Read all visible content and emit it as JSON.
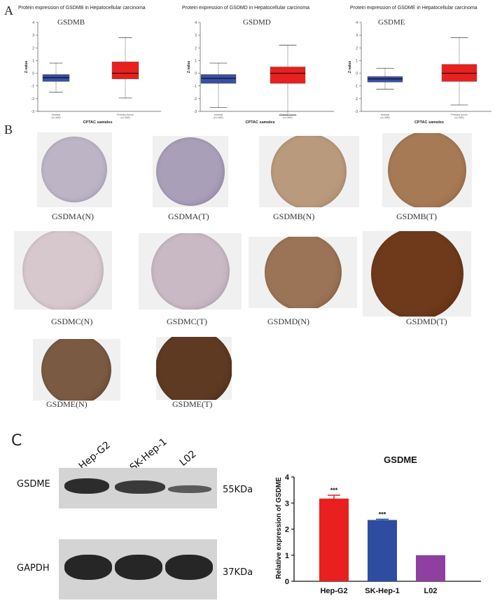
{
  "panels": {
    "a": "A",
    "b": "B",
    "c": "C"
  },
  "boxplots": [
    {
      "title": "Protein expression of GSDMB in Hepatocellular carcinoma",
      "gene": "GSDMB",
      "normal_label": "Normal",
      "normal_n": "(n=165)",
      "tumor_label": "Primary tumor",
      "tumor_n": "(n=165)",
      "normal_stats": [
        -1.5,
        -0.65,
        -0.35,
        -0.1,
        0.8
      ],
      "tumor_stats": [
        -1.95,
        -0.45,
        0.0,
        0.9,
        2.8
      ]
    },
    {
      "title": "Protein expression of GSDMD in Hepatocellular carcinoma",
      "gene": "GSDMD",
      "normal_label": "Normal",
      "normal_n": "(n=165)",
      "tumor_label": "Primary tumor",
      "tumor_n": "(n=165)",
      "normal_stats": [
        -2.7,
        -0.8,
        -0.4,
        -0.1,
        0.8
      ],
      "tumor_stats": [
        -3.3,
        -0.8,
        0.0,
        0.5,
        2.2
      ]
    },
    {
      "title": "Protein expression of GSDME in Hepatocellular carcinoma",
      "gene": "GSDME",
      "normal_label": "Normal",
      "normal_n": "(n=165)",
      "tumor_label": "Primary tumor",
      "tumor_n": "(n=165)",
      "normal_stats": [
        -1.25,
        -0.7,
        -0.45,
        -0.25,
        0.4
      ],
      "tumor_stats": [
        -2.5,
        -0.65,
        0.0,
        0.7,
        2.8
      ]
    }
  ],
  "boxplot_common": {
    "ylabel": "Z-value",
    "xlabel": "CPTAC samples",
    "yticks": [
      -3,
      -2,
      -1,
      0,
      1,
      2,
      3,
      4
    ],
    "normal_color": "#3a4fa3",
    "tumor_color": "#e8201f"
  },
  "ihc": [
    {
      "label": "GSDMA(N)",
      "color": "#bdb5c6",
      "rim": "#a69dba"
    },
    {
      "label": "GSDMA(T)",
      "color": "#a99fb8",
      "rim": "#8f85a3"
    },
    {
      "label": "GSDMB(N)",
      "color": "#b99a7d",
      "rim": "#a9896a"
    },
    {
      "label": "GSDMB(T)",
      "color": "#a77a56",
      "rim": "#94673f"
    },
    {
      "label": "GSDMC(N)",
      "color": "#d6c8cd",
      "rim": "#c2b1bd"
    },
    {
      "label": "GSDMC(T)",
      "color": "#c8b9c4",
      "rim": "#b2a2b4"
    },
    {
      "label": "GSDMD(N)",
      "color": "#9b7457",
      "rim": "#87603f"
    },
    {
      "label": "GSDMD(T)",
      "color": "#6f3a1c",
      "rim": "#5a2b10"
    },
    {
      "label": "GSDME(N)",
      "color": "#7a5a42",
      "rim": "#5f432f"
    },
    {
      "label": "GSDME(T)",
      "color": "#5e3a22",
      "rim": "#4a2a15"
    }
  ],
  "western": {
    "lanes": [
      "Hep-G2",
      "SK-Hep-1",
      "L02"
    ],
    "rows": [
      {
        "protein": "GSDME",
        "size": "55KDa"
      },
      {
        "protein": "GAPDH",
        "size": "37KDa"
      }
    ]
  },
  "chart_data": {
    "type": "bar",
    "title": "GSDME",
    "ylabel": "Relative expression of GSDME",
    "categories": [
      "Hep-G2",
      "SK-Hep-1",
      "L02"
    ],
    "values": [
      3.17,
      2.35,
      1.0
    ],
    "errors": [
      0.13,
      0.03,
      0.0
    ],
    "significance": [
      "***",
      "***",
      ""
    ],
    "colors": [
      "#e8201f",
      "#2e4da0",
      "#8e3fa0"
    ],
    "ylim": [
      0,
      4
    ],
    "yticks": [
      0,
      1,
      2,
      3,
      4
    ]
  }
}
